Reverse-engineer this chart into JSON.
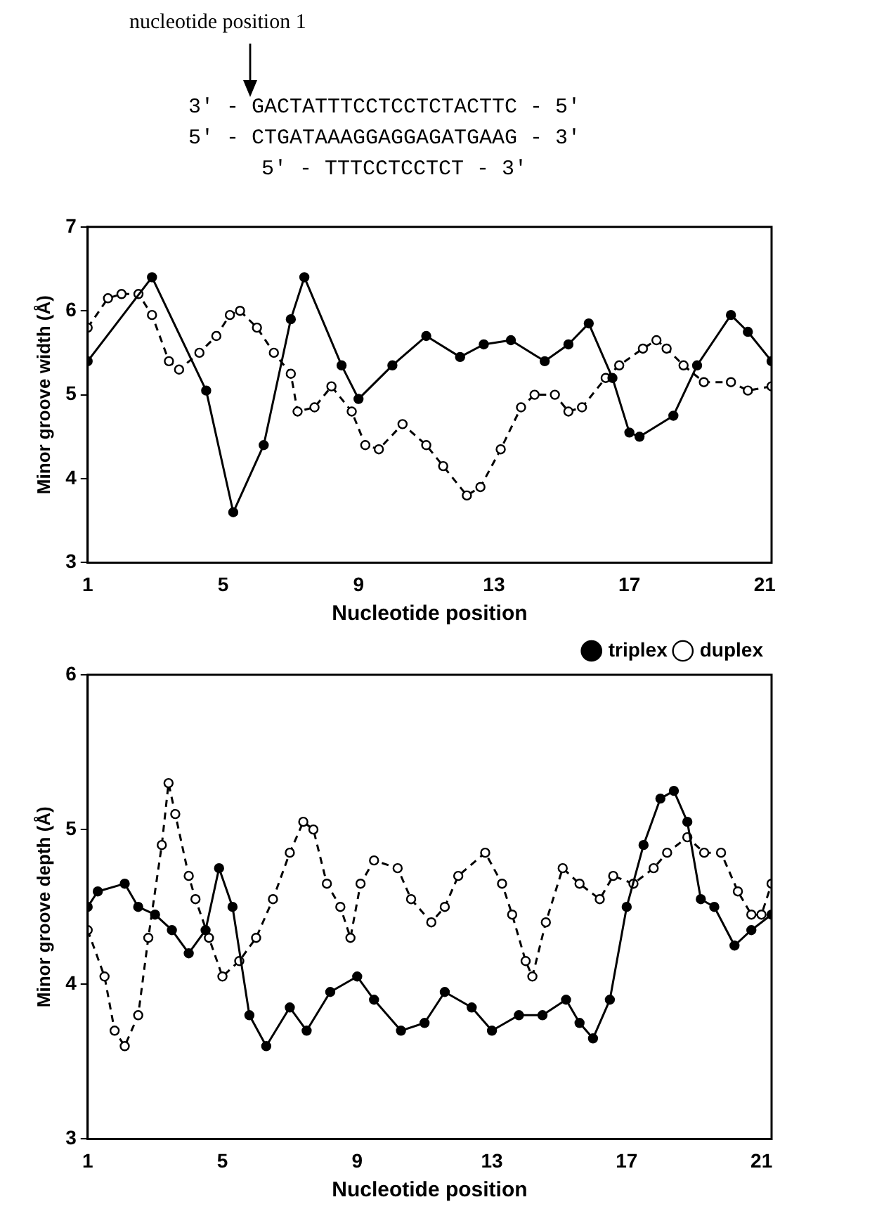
{
  "chart_data": [
    {
      "type": "line",
      "ylabel": "Minor groove width (Å)",
      "xlabel": "Nucleotide position",
      "annotations": [
        "nucleotide position 1",
        "3' - GACTATTTCCTCCTCTACTTC - 5'",
        "5' - CTGATAAAGGAGGAGATGAAG - 3'",
        "5' - TTTCCTCCTCT - 3'"
      ],
      "xlim": [
        1,
        21.2
      ],
      "xticks": [
        1,
        5,
        9,
        13,
        17,
        21
      ],
      "ylim": [
        3,
        7
      ],
      "yticks": [
        3,
        4,
        5,
        6,
        7
      ],
      "grid": false,
      "legend": false,
      "marker": "circle",
      "series": [
        {
          "color": "#000000",
          "line_style": "solid",
          "x": [
            1,
            2.9,
            4.5,
            5.3,
            6.2,
            7,
            7.4,
            8.5,
            9,
            10,
            11,
            12,
            12.7,
            13.5,
            14.5,
            15.2,
            15.8,
            16.5,
            17,
            17.3,
            18.3,
            19,
            20,
            20.5,
            21.2
          ],
          "values": [
            5.4,
            6.4,
            5.05,
            3.6,
            4.4,
            5.9,
            6.4,
            5.35,
            4.95,
            5.35,
            5.7,
            5.45,
            5.6,
            5.65,
            5.4,
            5.6,
            5.85,
            5.2,
            4.55,
            4.5,
            4.75,
            5.35,
            5.95,
            5.75,
            5.4
          ]
        },
        {
          "color": "#000000",
          "line_style": "dashed",
          "x": [
            1,
            1.6,
            2,
            2.5,
            2.9,
            3.4,
            3.7,
            4.3,
            4.8,
            5.2,
            5.5,
            6,
            6.5,
            7,
            7.2,
            7.7,
            8.2,
            8.8,
            9.2,
            9.6,
            10.3,
            11,
            11.5,
            12.2,
            12.6,
            13.2,
            13.8,
            14.2,
            14.8,
            15.2,
            15.6,
            16.3,
            16.7,
            17.4,
            17.8,
            18.1,
            18.6,
            19.2,
            20,
            20.5,
            21.2
          ],
          "values": [
            5.8,
            6.15,
            6.2,
            6.2,
            5.95,
            5.4,
            5.3,
            5.5,
            5.7,
            5.95,
            6.0,
            5.8,
            5.5,
            5.25,
            4.8,
            4.85,
            5.1,
            4.8,
            4.4,
            4.35,
            4.65,
            4.4,
            4.15,
            3.8,
            3.9,
            4.35,
            4.85,
            5.0,
            5.0,
            4.8,
            4.85,
            5.2,
            5.35,
            5.55,
            5.65,
            5.55,
            5.35,
            5.15,
            5.15,
            5.05,
            5.1
          ]
        }
      ]
    },
    {
      "type": "line",
      "ylabel": "Minor groove depth (Å)",
      "xlabel": "Nucleotide position",
      "xlim": [
        1,
        21.3
      ],
      "xticks": [
        1,
        5,
        9,
        13,
        17,
        21
      ],
      "ylim": [
        3,
        6
      ],
      "yticks": [
        3,
        4,
        5,
        6
      ],
      "grid": false,
      "legend": "top right",
      "marker": "circle",
      "series": [
        {
          "name": "triplex",
          "color": "#000000",
          "line_style": "solid",
          "x": [
            1,
            1.3,
            2.1,
            2.5,
            3,
            3.5,
            4,
            4.5,
            4.9,
            5.3,
            5.8,
            6.3,
            7,
            7.5,
            8.2,
            9,
            9.5,
            10.3,
            11,
            11.6,
            12.4,
            13,
            13.8,
            14.5,
            15.2,
            15.6,
            16,
            16.5,
            17,
            17.5,
            18,
            18.4,
            18.8,
            19.2,
            19.6,
            20.2,
            20.7,
            21.3
          ],
          "values": [
            4.5,
            4.6,
            4.65,
            4.5,
            4.45,
            4.35,
            4.2,
            4.35,
            4.75,
            4.5,
            3.8,
            3.6,
            3.85,
            3.7,
            3.95,
            4.05,
            3.9,
            3.7,
            3.75,
            3.95,
            3.85,
            3.7,
            3.8,
            3.8,
            3.9,
            3.75,
            3.65,
            3.9,
            4.5,
            4.9,
            5.2,
            5.25,
            5.05,
            4.55,
            4.5,
            4.25,
            4.35,
            4.45
          ]
        },
        {
          "name": "duplex",
          "color": "#000000",
          "line_style": "dashed",
          "x": [
            1,
            1.5,
            1.8,
            2.1,
            2.5,
            2.8,
            3.2,
            3.4,
            3.6,
            4,
            4.2,
            4.6,
            5,
            5.5,
            6,
            6.5,
            7,
            7.4,
            7.7,
            8.1,
            8.5,
            8.8,
            9.1,
            9.5,
            10.2,
            10.6,
            11.2,
            11.6,
            12,
            12.8,
            13.3,
            13.6,
            14,
            14.2,
            14.6,
            15.1,
            15.6,
            16.2,
            16.6,
            17.2,
            17.8,
            18.2,
            18.8,
            19.3,
            19.8,
            20.3,
            20.7,
            21,
            21.3
          ],
          "values": [
            4.35,
            4.05,
            3.7,
            3.6,
            3.8,
            4.3,
            4.9,
            5.3,
            5.1,
            4.7,
            4.55,
            4.3,
            4.05,
            4.15,
            4.3,
            4.55,
            4.85,
            5.05,
            5.0,
            4.65,
            4.5,
            4.3,
            4.65,
            4.8,
            4.75,
            4.55,
            4.4,
            4.5,
            4.7,
            4.85,
            4.65,
            4.45,
            4.15,
            4.05,
            4.4,
            4.75,
            4.65,
            4.55,
            4.7,
            4.65,
            4.75,
            4.85,
            4.95,
            4.85,
            4.85,
            4.6,
            4.45,
            4.45,
            4.65
          ]
        }
      ]
    }
  ]
}
